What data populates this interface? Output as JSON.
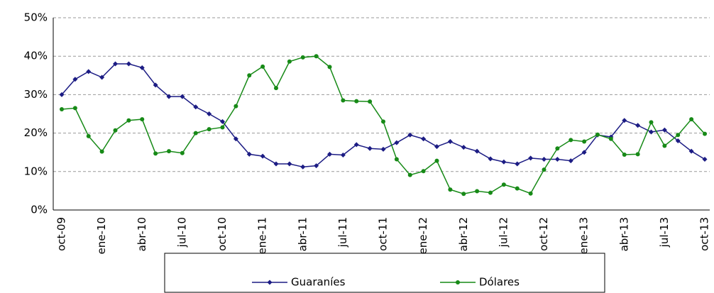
{
  "chart_data": {
    "type": "line",
    "categories": [
      "oct-09",
      null,
      null,
      "ene-10",
      null,
      null,
      "abr-10",
      null,
      null,
      "jul-10",
      null,
      null,
      "oct-10",
      null,
      null,
      "ene-11",
      null,
      null,
      "abr-11",
      null,
      null,
      "jul-11",
      null,
      null,
      "oct-11",
      null,
      null,
      "ene-12",
      null,
      null,
      "abr-12",
      null,
      null,
      "jul-12",
      null,
      null,
      "oct-12",
      null,
      null,
      "ene-13",
      null,
      null,
      "abr-13",
      null,
      null,
      "jul-13",
      null,
      null,
      "oct-13"
    ],
    "series": [
      {
        "name": "Guaraníes",
        "color": "#1c1c84",
        "values": [
          30,
          34,
          36,
          34.5,
          38,
          38,
          37,
          32.5,
          29.5,
          29.5,
          26.8,
          25,
          23,
          18.5,
          14.5,
          14,
          12,
          12,
          11.2,
          11.5,
          14.5,
          14.3,
          17,
          16,
          15.8,
          17.5,
          19.5,
          18.5,
          16.5,
          17.8,
          16.3,
          15.3,
          13.3,
          12.5,
          12,
          13.5,
          13.2,
          13.2,
          12.8,
          15,
          19.5,
          19,
          23.3,
          22,
          20.3,
          20.8,
          18,
          15.3,
          13.2
        ]
      },
      {
        "name": "Dólares",
        "color": "#178a17",
        "values": [
          26.2,
          26.5,
          19.2,
          15.2,
          20.7,
          23.3,
          23.6,
          14.7,
          15.3,
          14.8,
          20,
          21,
          21.5,
          27,
          35,
          37.3,
          31.7,
          38.6,
          39.7,
          40,
          37.2,
          28.5,
          28.3,
          28.2,
          23,
          13.2,
          9.1,
          10.1,
          12.8,
          5.3,
          4.2,
          4.9,
          4.5,
          6.6,
          5.6,
          4.3,
          10.5,
          16,
          18.2,
          17.8,
          19.6,
          18.5,
          14.4,
          14.5,
          22.8,
          16.7,
          19.5,
          23.6,
          19.8
        ]
      }
    ],
    "ylim": [
      0,
      50
    ],
    "yticks": [
      {
        "value": 0,
        "label": "0%"
      },
      {
        "value": 10,
        "label": "10%"
      },
      {
        "value": 20,
        "label": "20%"
      },
      {
        "value": 30,
        "label": "30%"
      },
      {
        "value": 40,
        "label": "40%"
      },
      {
        "value": 50,
        "label": "50%"
      }
    ],
    "grid": true,
    "legend": "bottom"
  }
}
